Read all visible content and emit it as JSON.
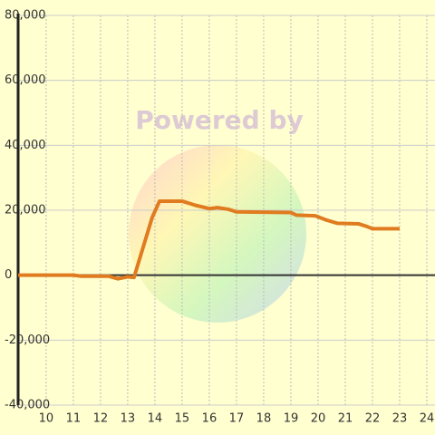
{
  "chart_data": {
    "type": "line",
    "watermark": "Powered by",
    "x": [
      8.97,
      11,
      11.3,
      12.3,
      12.63,
      13.0,
      13.23,
      13.9,
      14.17,
      15.0,
      15.5,
      16.0,
      16.3,
      16.7,
      17.0,
      18.0,
      19.0,
      19.2,
      19.9,
      20.3,
      20.7,
      21.5,
      21.8,
      22.0,
      23.0
    ],
    "series": [
      {
        "color": "#e07b20",
        "values": [
          0,
          0,
          -300,
          -300,
          -1100,
          -500,
          -700,
          17800,
          22800,
          22800,
          21500,
          20500,
          20800,
          20300,
          19500,
          19400,
          19300,
          18500,
          18300,
          17000,
          16000,
          15800,
          15000,
          14300,
          14300
        ]
      }
    ],
    "xlim": [
      8.97,
      24.3
    ],
    "ylim": [
      -40000,
      80000
    ],
    "xticks": [
      10,
      11,
      12,
      13,
      14,
      15,
      16,
      17,
      18,
      19,
      20,
      21,
      22,
      23,
      24
    ],
    "yticks": [
      {
        "value": -40000,
        "label": "-40,000"
      },
      {
        "value": -20000,
        "label": "-20,000"
      },
      0,
      {
        "value": 20000,
        "label": "20,000"
      },
      {
        "value": 40000,
        "label": "40,000"
      },
      {
        "value": 60000,
        "label": "60,000"
      },
      {
        "value": 80000,
        "label": "80,000"
      }
    ],
    "grid": true
  }
}
